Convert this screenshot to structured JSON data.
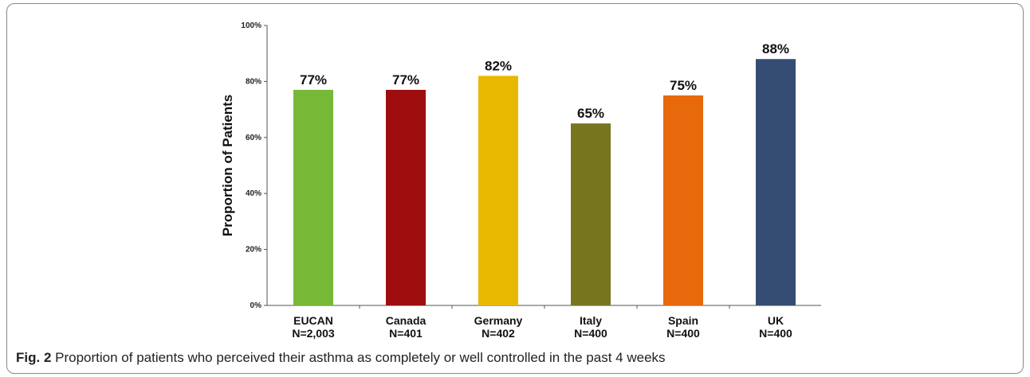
{
  "chart_data": {
    "type": "bar",
    "ylabel": "Proportion of Patients",
    "ylim": [
      0,
      100
    ],
    "yticks": [
      "0%",
      "20%",
      "40%",
      "60%",
      "80%",
      "100%"
    ],
    "categories": [
      {
        "name": "EUCAN",
        "n": "N=2,003"
      },
      {
        "name": "Canada",
        "n": "N=401"
      },
      {
        "name": "Germany",
        "n": "N=402"
      },
      {
        "name": "Italy",
        "n": "N=400"
      },
      {
        "name": "Spain",
        "n": "N=400"
      },
      {
        "name": "UK",
        "n": "N=400"
      }
    ],
    "values": [
      77,
      77,
      82,
      65,
      75,
      88
    ],
    "data_labels": [
      "77%",
      "77%",
      "82%",
      "65%",
      "75%",
      "88%"
    ],
    "colors": [
      "#77b836",
      "#9e0e0e",
      "#e8b800",
      "#77761e",
      "#e8680c",
      "#354d72"
    ],
    "grid": false
  },
  "caption": {
    "fig_label": "Fig. 2",
    "text": " Proportion of patients who perceived their asthma as completely or well controlled in the past 4 weeks"
  }
}
